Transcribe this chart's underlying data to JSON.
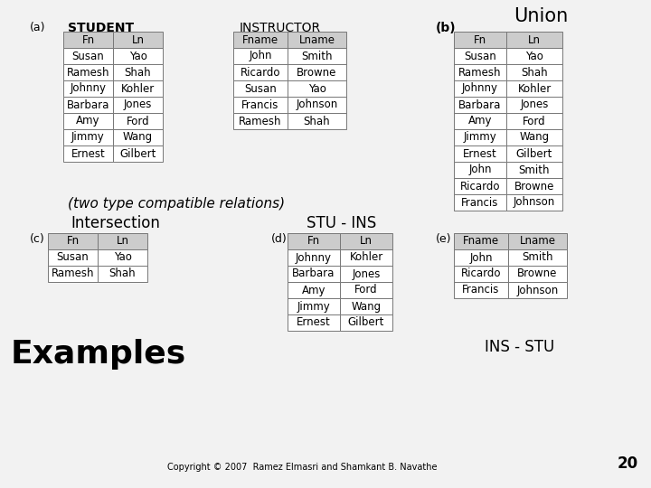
{
  "background_color": "#f2f2f2",
  "title_union": "Union",
  "title_intersection": "Intersection",
  "title_stu_ins": "STU - INS",
  "title_ins_stu": "INS - STU",
  "title_examples": "Examples",
  "label_a": "(a)",
  "label_b": "(b)",
  "label_c": "(c)",
  "label_d": "(d)",
  "label_e": "(e)",
  "label_student": "STUDENT",
  "label_instructor": "INSTRUCTOR",
  "caption": "(two type compatible relations)",
  "copyright": "Copyright © 2007  Ramez Elmasri and Shamkant B. Navathe",
  "page_number": "20",
  "table_a_headers": [
    "Fn",
    "Ln"
  ],
  "table_a_rows": [
    [
      "Susan",
      "Yao"
    ],
    [
      "Ramesh",
      "Shah"
    ],
    [
      "Johnny",
      "Kohler"
    ],
    [
      "Barbara",
      "Jones"
    ],
    [
      "Amy",
      "Ford"
    ],
    [
      "Jimmy",
      "Wang"
    ],
    [
      "Ernest",
      "Gilbert"
    ]
  ],
  "table_instructor_headers": [
    "Fname",
    "Lname"
  ],
  "table_instructor_rows": [
    [
      "John",
      "Smith"
    ],
    [
      "Ricardo",
      "Browne"
    ],
    [
      "Susan",
      "Yao"
    ],
    [
      "Francis",
      "Johnson"
    ],
    [
      "Ramesh",
      "Shah"
    ]
  ],
  "table_b_headers": [
    "Fn",
    "Ln"
  ],
  "table_b_rows": [
    [
      "Susan",
      "Yao"
    ],
    [
      "Ramesh",
      "Shah"
    ],
    [
      "Johnny",
      "Kohler"
    ],
    [
      "Barbara",
      "Jones"
    ],
    [
      "Amy",
      "Ford"
    ],
    [
      "Jimmy",
      "Wang"
    ],
    [
      "Ernest",
      "Gilbert"
    ],
    [
      "John",
      "Smith"
    ],
    [
      "Ricardo",
      "Browne"
    ],
    [
      "Francis",
      "Johnson"
    ]
  ],
  "table_c_headers": [
    "Fn",
    "Ln"
  ],
  "table_c_rows": [
    [
      "Susan",
      "Yao"
    ],
    [
      "Ramesh",
      "Shah"
    ]
  ],
  "table_d_headers": [
    "Fn",
    "Ln"
  ],
  "table_d_rows": [
    [
      "Johnny",
      "Kohler"
    ],
    [
      "Barbara",
      "Jones"
    ],
    [
      "Amy",
      "Ford"
    ],
    [
      "Jimmy",
      "Wang"
    ],
    [
      "Ernest",
      "Gilbert"
    ]
  ],
  "table_e_headers": [
    "Fname",
    "Lname"
  ],
  "table_e_rows": [
    [
      "John",
      "Smith"
    ],
    [
      "Ricardo",
      "Browne"
    ],
    [
      "Francis",
      "Johnson"
    ]
  ],
  "header_bg": "#cccccc",
  "cell_bg": "#ffffff",
  "border_color": "#777777",
  "text_color": "#000000",
  "cell_fontsize": 8.5,
  "label_fontsize": 9,
  "title_fontsize": 15,
  "subtitle_fontsize": 11,
  "examples_fontsize": 26,
  "copyright_fontsize": 7
}
